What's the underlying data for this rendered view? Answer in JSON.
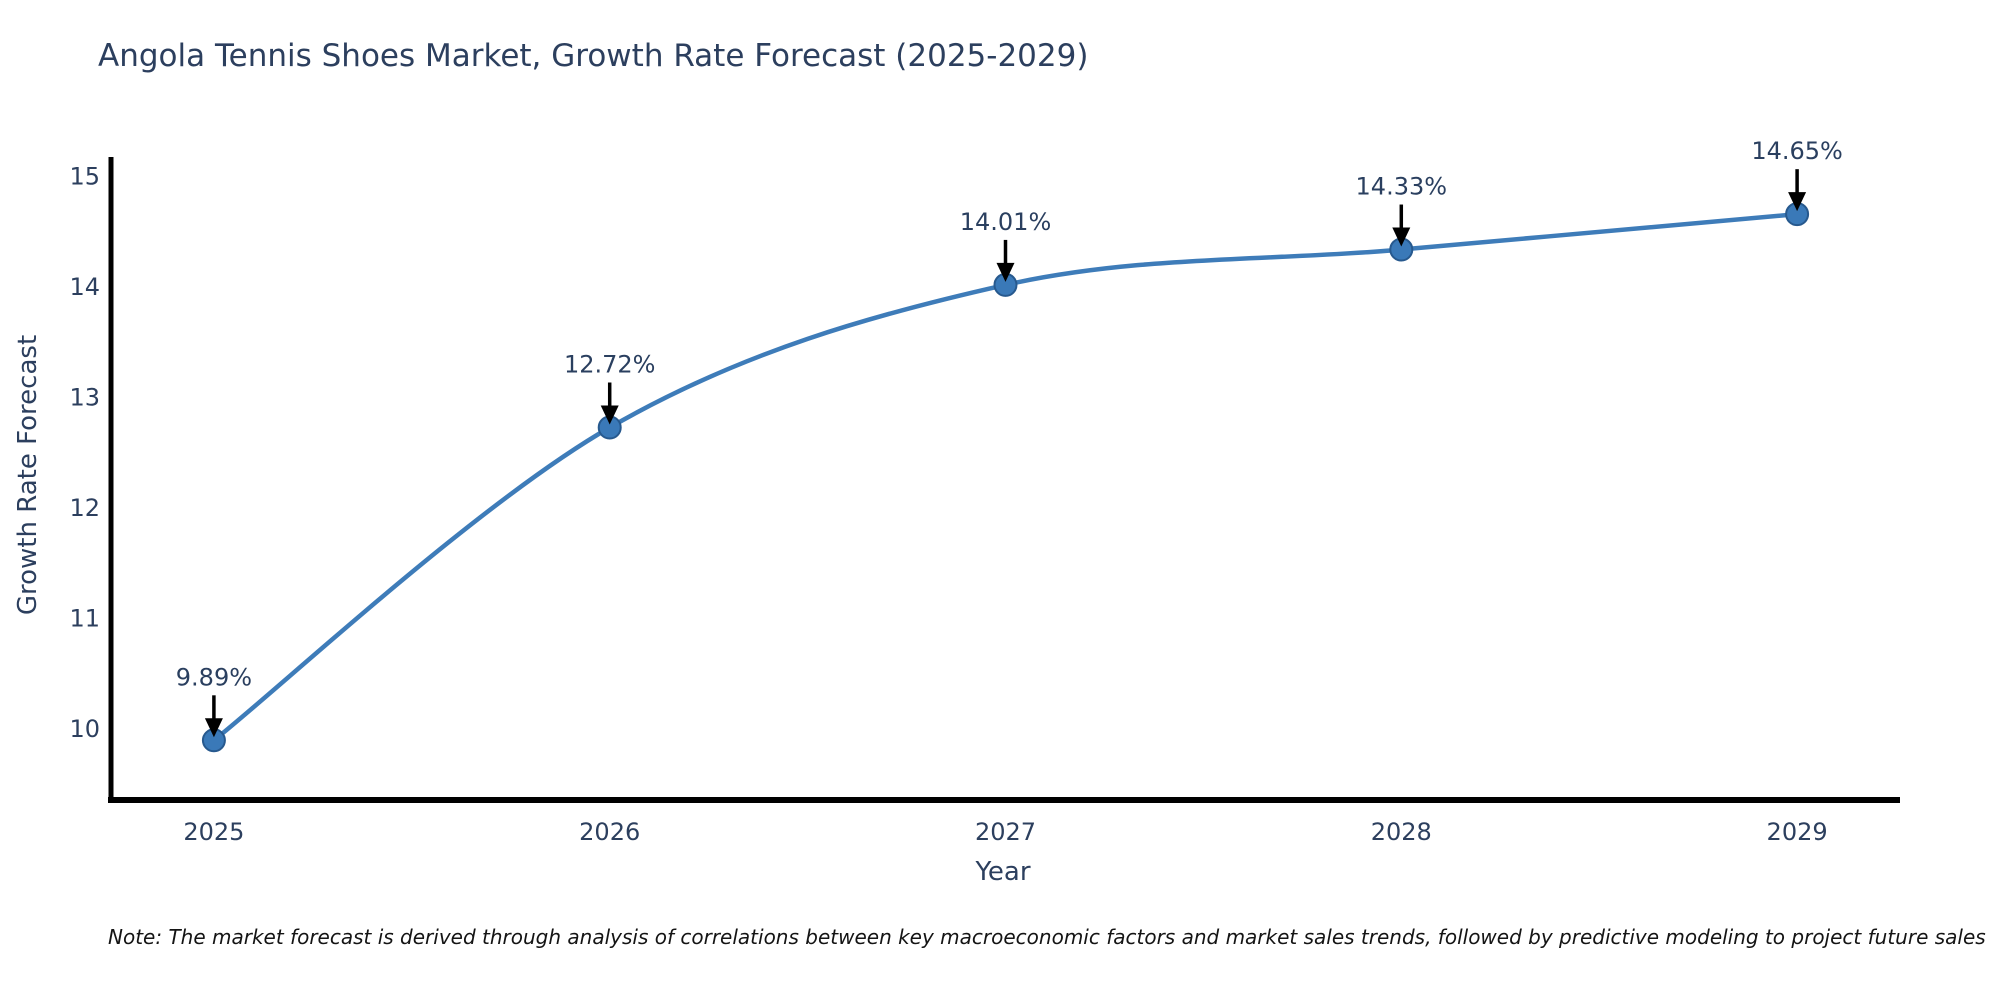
{
  "note": "Note: The market forecast is derived through analysis of correlations between key macroeconomic factors and market sales trends, followed by predictive modeling to project future sales",
  "chart_data": {
    "type": "line",
    "title": "Angola Tennis Shoes Market, Growth Rate Forecast (2025-2029)",
    "xlabel": "Year",
    "ylabel": "Growth Rate Forecast",
    "x": [
      2025,
      2026,
      2027,
      2028,
      2029
    ],
    "series": [
      {
        "name": "Growth Rate Forecast",
        "values": [
          9.89,
          12.72,
          14.01,
          14.33,
          14.65
        ],
        "point_labels": [
          "9.89%",
          "12.72%",
          "14.01%",
          "14.33%",
          "14.65%"
        ]
      }
    ],
    "line_shape": "spline",
    "xticks": [
      "2025",
      "2026",
      "2027",
      "2028",
      "2029"
    ],
    "xtick_values": [
      2025,
      2026,
      2027,
      2028,
      2029
    ],
    "yticks": [
      10,
      11,
      12,
      13,
      14,
      15
    ],
    "xlim": [
      2024.74,
      2029.26
    ],
    "ylim": [
      9.35,
      15.14
    ],
    "grid": false,
    "legend_position": "none",
    "annotations_have_arrows": true,
    "colors": {
      "line": "#3e7cb9",
      "marker_fill": "#3a79b8",
      "marker_edge": "#27598e",
      "arrow": "#000000",
      "axis_line": "#000000",
      "tick_text": "#2c3f5e",
      "annotation_text": "#2a3f5f",
      "note_text": "#141414",
      "background": "#ffffff"
    }
  }
}
